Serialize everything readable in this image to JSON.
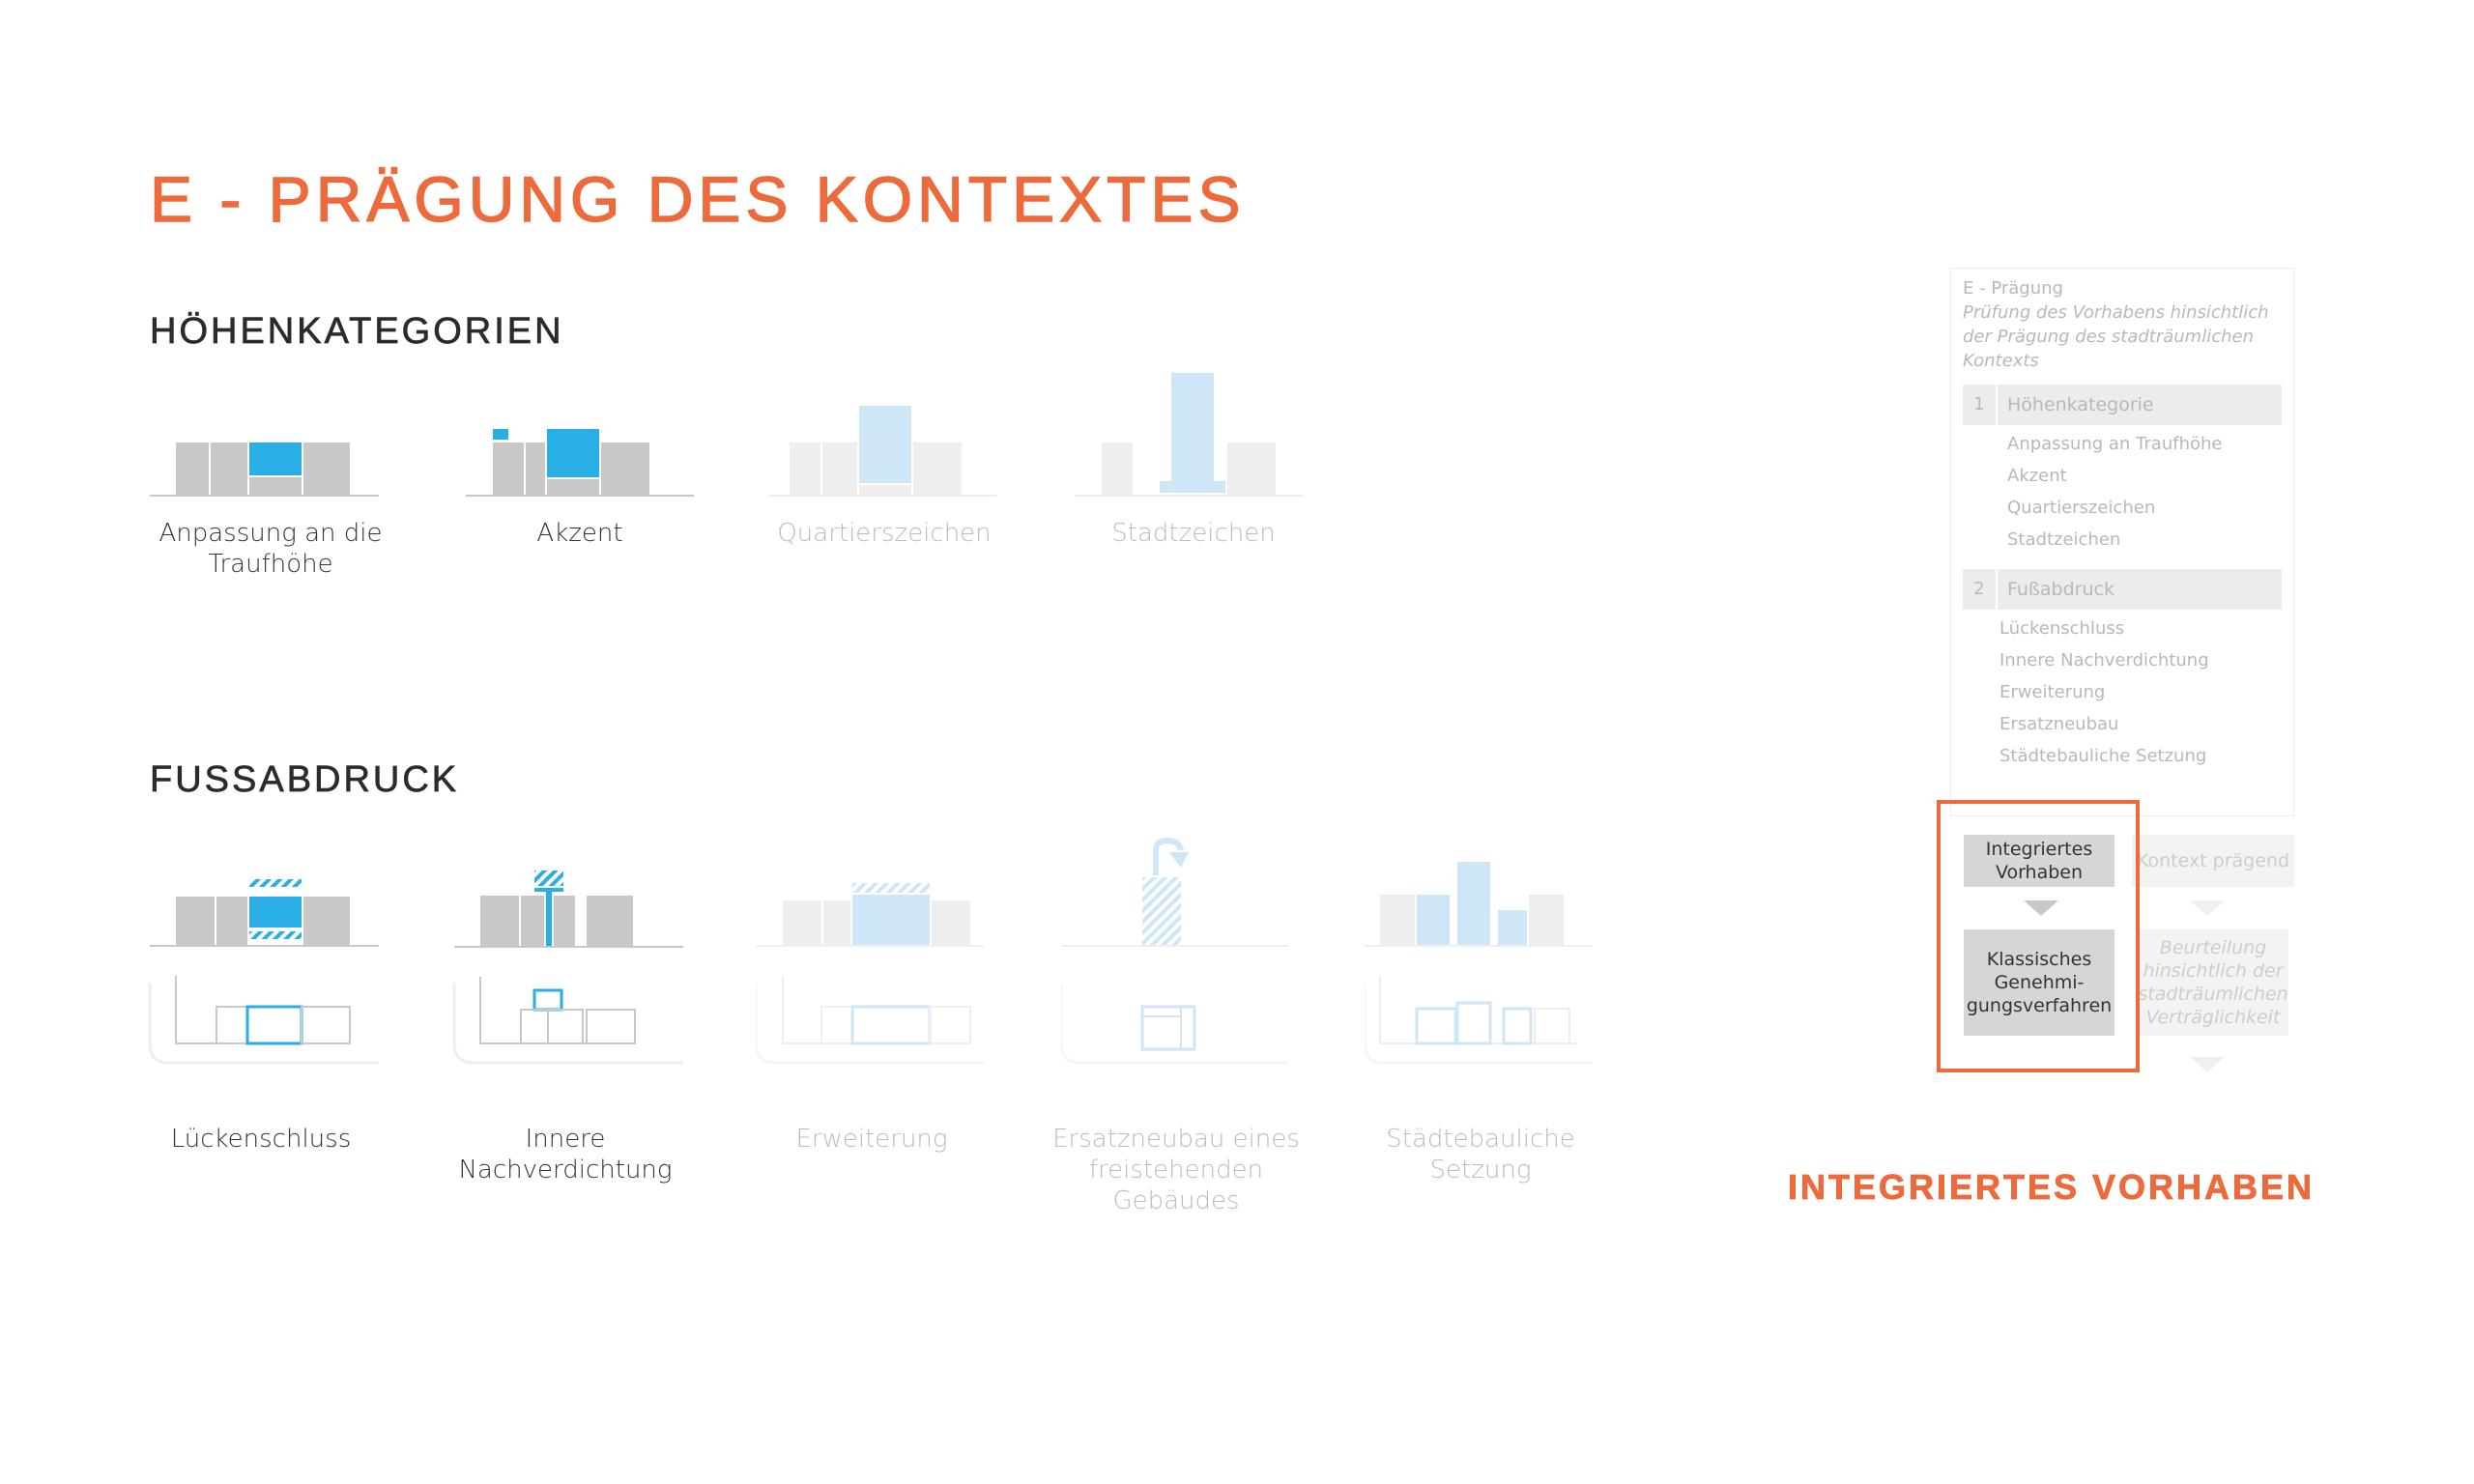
{
  "title": "E - PRÄGUNG DES KONTEXTES",
  "sections": {
    "heights": "HÖHENKATEGORIEN",
    "footprint": "FUSSABDRUCK"
  },
  "height_categories": [
    {
      "label": "Anpassung an die Traufhöhe",
      "active": true
    },
    {
      "label": "Akzent",
      "active": true
    },
    {
      "label": "Quartierszeichen",
      "active": false
    },
    {
      "label": "Stadtzeichen",
      "active": false
    }
  ],
  "footprint_categories": [
    {
      "label": "Lückenschluss",
      "active": true
    },
    {
      "label": "Innere Nachverdichtung",
      "active": true
    },
    {
      "label": "Erweiterung",
      "active": false
    },
    {
      "label": "Ersatzneubau eines freistehenden Gebäudes",
      "active": false
    },
    {
      "label": "Städtebauliche Setzung",
      "active": false
    }
  ],
  "panel": {
    "header": "E - Prägung",
    "subtitle": [
      "Prüfung des Vorhabens hinsichtlich",
      "der Prägung des stadträumlichen",
      "Kontexts"
    ],
    "groups": [
      {
        "num": "1",
        "label": "Höhenkategorie",
        "items": [
          "Anpassung an Traufhöhe",
          "Akzent",
          "Quartierszeichen",
          "Stadtzeichen"
        ]
      },
      {
        "num": "2",
        "label": "Fußabdruck",
        "items": [
          "Lückenschluss",
          "Innere Nachverdichtung",
          "Erweiterung",
          "Ersatzneubau",
          "Städtebauliche Setzung"
        ]
      }
    ],
    "decision_left_top": "Integriertes Vorhaben",
    "decision_right_top": "Kontext prägend",
    "decision_left_bottom": "Klassisches Genehmi-gungsverfahren",
    "decision_right_bottom": "Beurteilung hinsichtlich der stadträumlichen Verträglichkeit"
  },
  "result": "INTEGRIERTES VORHABEN",
  "colors": {
    "accent": "#ec6a3c",
    "blue": "#2aaee6",
    "light_blue": "#cfe6f7",
    "grey": "#c8c8c8",
    "light_grey": "#eeeeee"
  }
}
